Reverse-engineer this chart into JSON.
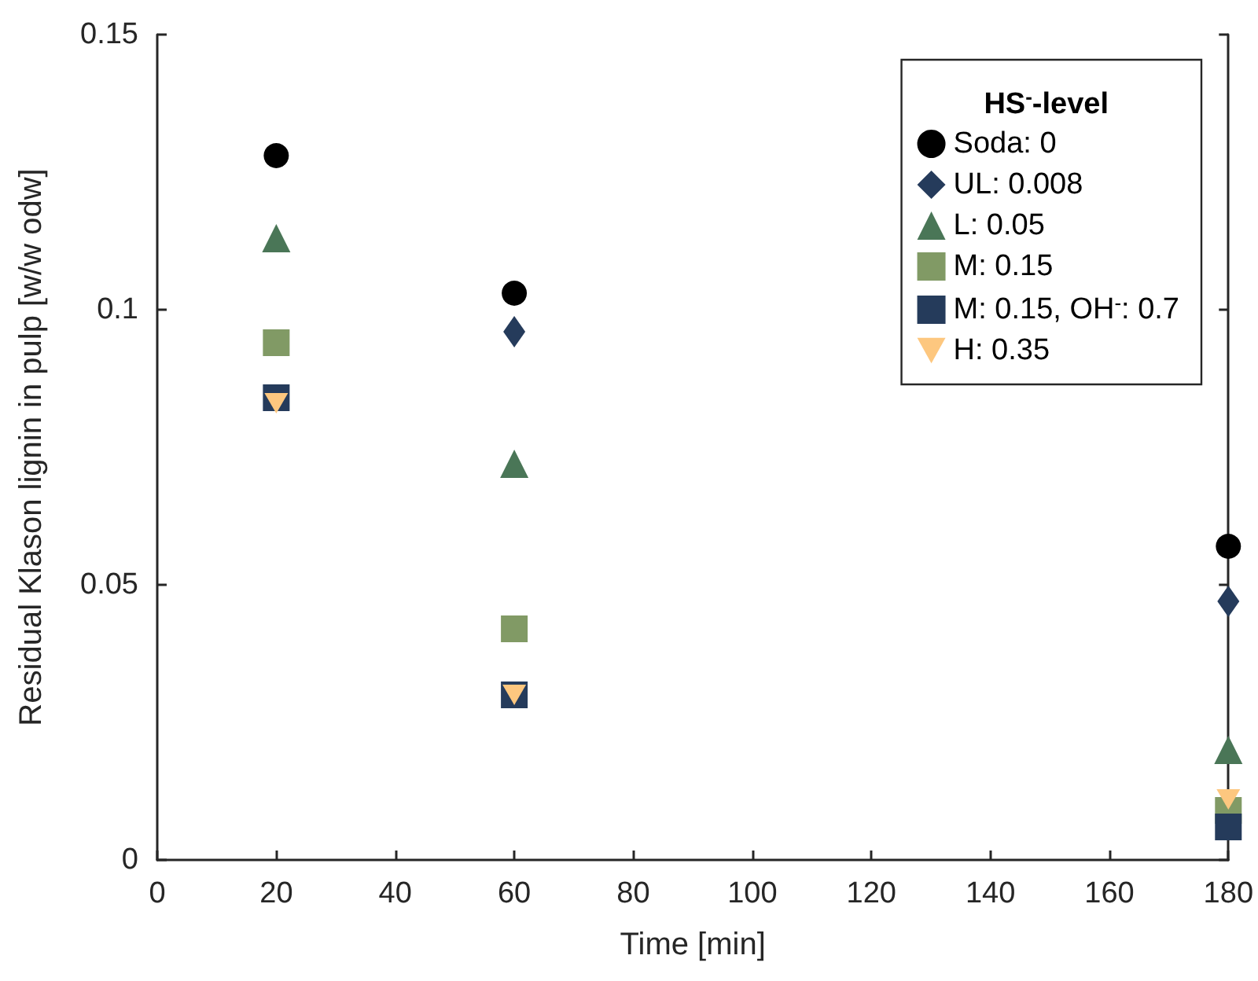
{
  "chart_data": {
    "type": "scatter",
    "xlabel": "Time [min]",
    "ylabel": "Residual Klason lignin in pulp [w/w odw]",
    "legend_title": "HS$^{-}$-level",
    "x": [
      20,
      60,
      180
    ],
    "series": [
      {
        "name": "Soda: 0",
        "color": "#000000",
        "marker": "circle",
        "values": [
          0.128,
          0.103,
          0.057
        ]
      },
      {
        "name": "UL: 0.008",
        "color": "#253b5b",
        "marker": "diamond",
        "values": [
          null,
          0.096,
          0.047
        ]
      },
      {
        "name": "L: 0.05",
        "color": "#4a7657",
        "marker": "triangle",
        "values": [
          0.113,
          0.072,
          0.02
        ]
      },
      {
        "name": "M: 0.15",
        "color": "#819a65",
        "marker": "square",
        "values": [
          0.094,
          0.042,
          0.009
        ]
      },
      {
        "name": "M: 0.15, OH$^{-}$: 0.7",
        "color": "#253b5b",
        "marker": "square",
        "values": [
          0.084,
          0.03,
          0.006
        ]
      },
      {
        "name": "H: 0.35",
        "color": "#fdc77f",
        "marker": "triangle-down",
        "values": [
          0.083,
          0.03,
          0.011
        ]
      }
    ],
    "xlim": [
      0,
      180
    ],
    "xticks": [
      0,
      20,
      40,
      60,
      80,
      100,
      120,
      140,
      160,
      180
    ],
    "ylim": [
      0,
      0.15
    ],
    "yticks": [
      0,
      0.05,
      0.1,
      0.15
    ],
    "grid": false,
    "legend": "top right"
  }
}
